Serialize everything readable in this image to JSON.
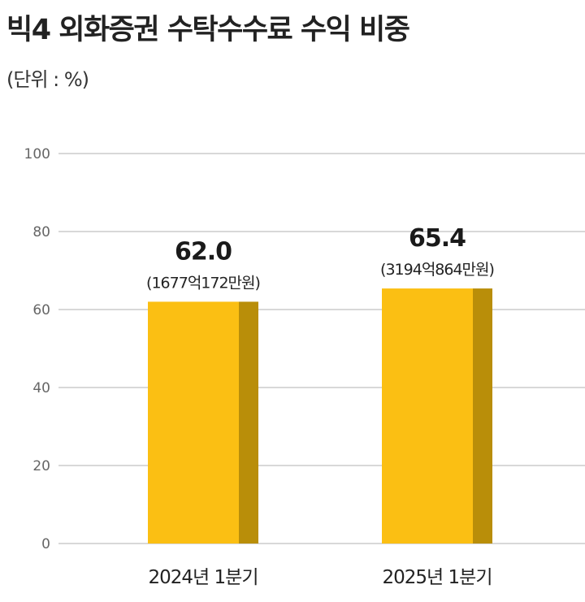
{
  "chart_data": {
    "type": "bar",
    "title": "빅4 외화증권 수탁수수료 수익 비중",
    "unit_label": "(단위 : %)",
    "categories": [
      "2024년 1분기",
      "2025년 1분기"
    ],
    "values": [
      62.0,
      65.4
    ],
    "value_labels": [
      "62.0",
      "65.4"
    ],
    "sub_labels": [
      "(1677억172만원)",
      "(3194억864만원)"
    ],
    "ylim": [
      0,
      100
    ],
    "yticks": [
      0,
      20,
      40,
      60,
      80,
      100
    ],
    "grid": true,
    "colors": {
      "bar_front": "#FBBF13",
      "bar_side": "#B98E09",
      "grid": "#B0B0B0"
    }
  }
}
